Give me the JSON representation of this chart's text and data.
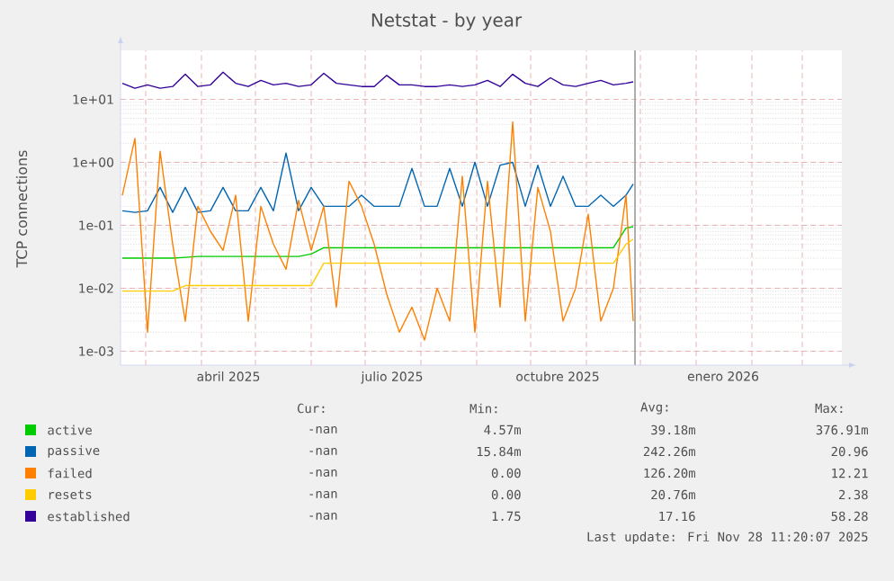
{
  "chart_data": {
    "type": "line",
    "title": "Netstat - by year",
    "ylabel": "TCP connections",
    "log": "y",
    "grid": true,
    "legend": "bottom",
    "ylim": [
      0.0006,
      60
    ],
    "yticks": [
      {
        "value": 0.001,
        "label": "1e-03"
      },
      {
        "value": 0.01,
        "label": "1e-02"
      },
      {
        "value": 0.1,
        "label": "1e-01"
      },
      {
        "value": 1,
        "label": "1e+00"
      },
      {
        "value": 10,
        "label": "1e+01"
      }
    ],
    "xlim": [
      "2025-02-15",
      "2026-03-23"
    ],
    "xticks": [
      {
        "value": "2025-03-01",
        "label": null
      },
      {
        "value": "2025-04-01",
        "label": null
      },
      {
        "value": "2025-05-01",
        "label": null
      },
      {
        "value": "2025-06-01",
        "label": null
      },
      {
        "value": "2025-07-01",
        "label": null
      },
      {
        "value": "2025-08-01",
        "label": null
      },
      {
        "value": "2025-09-01",
        "label": null
      },
      {
        "value": "2025-10-01",
        "label": null
      },
      {
        "value": "2025-11-01",
        "label": null
      },
      {
        "value": "2025-12-01",
        "label": null
      },
      {
        "value": "2026-01-01",
        "label": null
      },
      {
        "value": "2026-02-01",
        "label": null
      },
      {
        "value": "2026-03-01",
        "label": null
      },
      {
        "value": "2025-04-16",
        "label": "abril 2025"
      },
      {
        "value": "2025-07-16",
        "label": "julio 2025"
      },
      {
        "value": "2025-10-16",
        "label": "octubre 2025"
      },
      {
        "value": "2026-01-16",
        "label": "enero 2026"
      }
    ],
    "x": [
      "2025-02-16",
      "2025-02-23",
      "2025-03-02",
      "2025-03-09",
      "2025-03-16",
      "2025-03-23",
      "2025-03-30",
      "2025-04-06",
      "2025-04-13",
      "2025-04-20",
      "2025-04-27",
      "2025-05-04",
      "2025-05-11",
      "2025-05-18",
      "2025-05-25",
      "2025-06-01",
      "2025-06-08",
      "2025-06-15",
      "2025-06-22",
      "2025-06-29",
      "2025-07-06",
      "2025-07-13",
      "2025-07-20",
      "2025-07-27",
      "2025-08-03",
      "2025-08-10",
      "2025-08-17",
      "2025-08-24",
      "2025-08-31",
      "2025-09-07",
      "2025-09-14",
      "2025-09-21",
      "2025-09-28",
      "2025-10-05",
      "2025-10-12",
      "2025-10-19",
      "2025-10-26",
      "2025-11-02",
      "2025-11-09",
      "2025-11-16",
      "2025-11-23",
      "2025-11-27"
    ],
    "series": [
      {
        "name": "active",
        "color": "#00cc00",
        "values": [
          0.03,
          0.03,
          0.03,
          0.03,
          0.03,
          0.031,
          0.032,
          0.032,
          0.032,
          0.032,
          0.032,
          0.032,
          0.032,
          0.032,
          0.032,
          0.035,
          0.044,
          0.044,
          0.044,
          0.044,
          0.044,
          0.044,
          0.044,
          0.044,
          0.044,
          0.044,
          0.044,
          0.044,
          0.044,
          0.044,
          0.044,
          0.044,
          0.044,
          0.044,
          0.044,
          0.044,
          0.044,
          0.044,
          0.044,
          0.044,
          0.09,
          0.095
        ]
      },
      {
        "name": "passive",
        "color": "#0066b3",
        "values": [
          0.17,
          0.16,
          0.17,
          0.4,
          0.16,
          0.4,
          0.16,
          0.17,
          0.4,
          0.17,
          0.17,
          0.4,
          0.17,
          1.4,
          0.17,
          0.4,
          0.2,
          0.2,
          0.2,
          0.3,
          0.2,
          0.2,
          0.2,
          0.8,
          0.2,
          0.2,
          0.8,
          0.2,
          1.0,
          0.2,
          0.9,
          1.0,
          0.2,
          0.9,
          0.2,
          0.6,
          0.2,
          0.2,
          0.3,
          0.2,
          0.3,
          0.45
        ]
      },
      {
        "name": "failed",
        "color": "#ff8000",
        "values": [
          0.3,
          2.4,
          0.002,
          1.5,
          0.05,
          0.003,
          0.2,
          0.08,
          0.04,
          0.3,
          0.003,
          0.2,
          0.05,
          0.02,
          0.25,
          0.04,
          0.2,
          0.005,
          0.5,
          0.2,
          0.05,
          0.008,
          0.002,
          0.005,
          0.0015,
          0.01,
          0.003,
          0.6,
          0.002,
          0.5,
          0.005,
          4.4,
          0.003,
          0.4,
          0.08,
          0.003,
          0.01,
          0.15,
          0.003,
          0.01,
          0.3,
          0.003
        ]
      },
      {
        "name": "resets",
        "color": "#ffcc00",
        "values": [
          0.009,
          0.009,
          0.009,
          0.009,
          0.009,
          0.011,
          0.011,
          0.011,
          0.011,
          0.011,
          0.011,
          0.011,
          0.011,
          0.011,
          0.011,
          0.011,
          0.025,
          0.025,
          0.025,
          0.025,
          0.025,
          0.025,
          0.025,
          0.025,
          0.025,
          0.025,
          0.025,
          0.025,
          0.025,
          0.025,
          0.025,
          0.025,
          0.025,
          0.025,
          0.025,
          0.025,
          0.025,
          0.025,
          0.025,
          0.025,
          0.05,
          0.06
        ]
      },
      {
        "name": "established",
        "color": "#330099",
        "values": [
          18,
          15,
          17,
          15,
          16,
          25,
          16,
          17,
          27,
          18,
          16,
          20,
          17,
          18,
          16,
          17,
          26,
          18,
          17,
          16,
          16,
          24,
          17,
          17,
          16,
          16,
          17,
          16,
          17,
          20,
          16,
          25,
          18,
          16,
          22,
          17,
          16,
          18,
          20,
          17,
          18,
          19
        ]
      }
    ],
    "ref_lines": [
      {
        "axis": "x",
        "value": "2025-11-28",
        "label": null,
        "color": "#999999"
      }
    ],
    "annotations": [
      "Cur:",
      "Min:",
      "Avg:",
      "Max:",
      "-nan",
      "4.57m",
      "39.18m",
      "376.91m",
      "-nan",
      "15.84m",
      "242.26m",
      "20.96",
      "-nan",
      "0.00",
      "126.20m",
      "12.21",
      "-nan",
      "0.00",
      "20.76m",
      "2.38",
      "-nan",
      "1.75",
      "17.16",
      "58.28",
      "Last update: Fri Nov 28 11:20:07 2025"
    ]
  }
}
